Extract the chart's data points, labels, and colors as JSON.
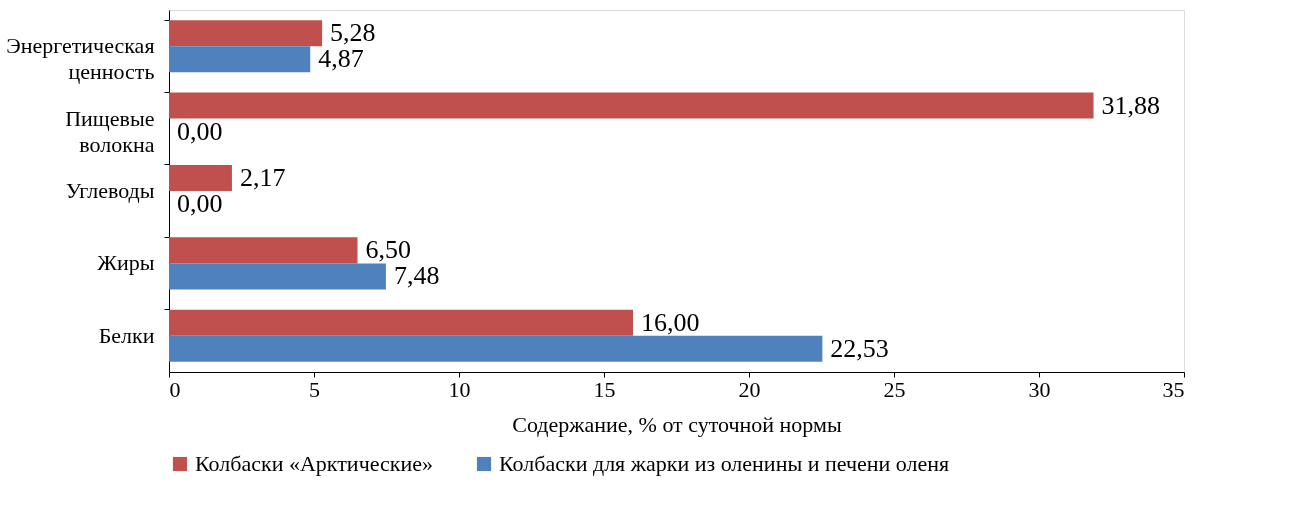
{
  "chart_data": {
    "type": "bar",
    "orientation": "horizontal",
    "xlabel": "Содержание, % от суточной нормы",
    "categories": [
      "Энергетическая ценность",
      "Пищевые волокна",
      "Углеводы",
      "Жиры",
      "Белки"
    ],
    "series": [
      {
        "name": "Колбаски «Арктические»",
        "color": "#c0504d",
        "values": [
          5.28,
          31.88,
          2.17,
          6.5,
          16.0
        ],
        "value_labels": [
          "5,28",
          "31,88",
          "2,17",
          "6,50",
          "16,00"
        ]
      },
      {
        "name": "Колбаски для жарки из оленины и печени оленя",
        "color": "#4f81bd",
        "values": [
          4.87,
          0.0,
          0.0,
          7.48,
          22.53
        ],
        "value_labels": [
          "4,87",
          "0,00",
          "0,00",
          "7,48",
          "22,53"
        ]
      }
    ],
    "xlim": [
      0,
      35
    ],
    "xticks": [
      0,
      5,
      10,
      15,
      20,
      25,
      30,
      35
    ],
    "grid": false,
    "legend": "bottom"
  }
}
